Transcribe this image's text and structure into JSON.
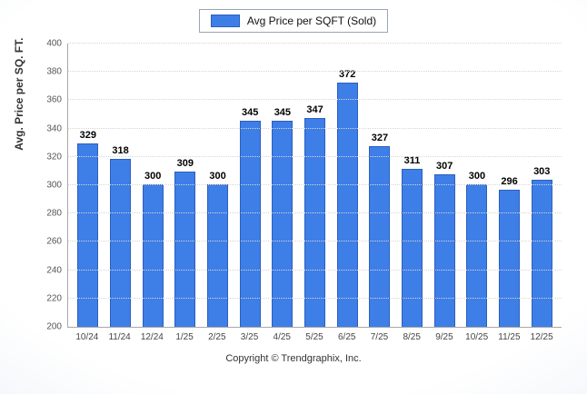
{
  "legend": {
    "label": "Avg Price per SQFT (Sold)"
  },
  "footer": {
    "copyright": "Copyright © Trendgraphix, Inc."
  },
  "chart_data": {
    "type": "bar",
    "title": "",
    "categories": [
      "10/24",
      "11/24",
      "12/24",
      "1/25",
      "2/25",
      "3/25",
      "4/25",
      "5/25",
      "6/25",
      "7/25",
      "8/25",
      "9/25",
      "10/25",
      "11/25",
      "12/25"
    ],
    "values": [
      329,
      318,
      300,
      309,
      300,
      345,
      345,
      347,
      372,
      327,
      311,
      307,
      300,
      296,
      303
    ],
    "xlabel": "",
    "ylabel": "Avg. Price per SQ. FT.",
    "ylim": [
      200,
      400
    ],
    "ytick_step": 20,
    "grid": true,
    "legend_position": "top",
    "bar_color": "#3e7ee7",
    "bar_border_color": "#2c5fc0"
  }
}
